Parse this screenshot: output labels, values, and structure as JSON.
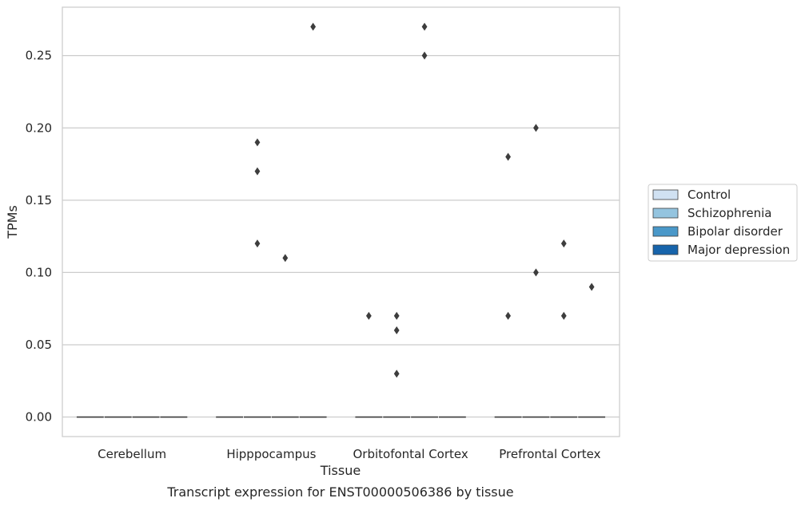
{
  "chart_data": {
    "type": "box",
    "ylabel": "TPMs",
    "xlabel": "Tissue",
    "caption": "Transcript expression for ENST00000506386 by tissue",
    "categories": [
      "Cerebellum",
      "Hipppocampus",
      "Orbitofontal Cortex",
      "Prefrontal Cortex"
    ],
    "ylim": [
      -0.0135,
      0.2835
    ],
    "yticks": [
      0.0,
      0.05,
      0.1,
      0.15,
      0.2,
      0.25
    ],
    "ytick_labels": [
      "0.00",
      "0.05",
      "0.10",
      "0.15",
      "0.20",
      "0.25"
    ],
    "grid": true,
    "legend_position": "right",
    "series": [
      {
        "name": "Control",
        "color": "#d0e1f2",
        "medians": [
          0,
          0,
          0,
          0
        ],
        "outliers": [
          [],
          [],
          [
            0.07
          ],
          [
            0.18,
            0.07
          ]
        ]
      },
      {
        "name": "Schizophrenia",
        "color": "#94c4df",
        "medians": [
          0,
          0,
          0,
          0
        ],
        "outliers": [
          [],
          [
            0.19,
            0.17,
            0.12
          ],
          [
            0.07,
            0.06,
            0.03
          ],
          [
            0.2,
            0.1
          ]
        ]
      },
      {
        "name": "Bipolar disorder",
        "color": "#4a98c9",
        "medians": [
          0,
          0,
          0,
          0
        ],
        "outliers": [
          [],
          [
            0.11
          ],
          [
            0.27,
            0.25
          ],
          [
            0.12,
            0.07
          ]
        ]
      },
      {
        "name": "Major depression",
        "color": "#1764ab",
        "medians": [
          0,
          0,
          0,
          0
        ],
        "outliers": [
          [],
          [
            0.27
          ],
          [],
          [
            0.09
          ]
        ]
      }
    ]
  }
}
